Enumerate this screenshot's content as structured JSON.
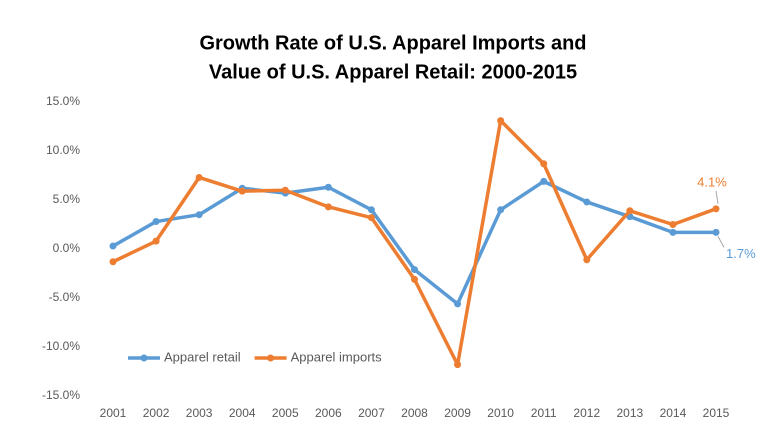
{
  "chart_data": {
    "type": "line",
    "title": [
      "Growth Rate of U.S. Apparel Imports and",
      "Value of U.S. Apparel Retail: 2000-2015"
    ],
    "categories": [
      "2001",
      "2002",
      "2003",
      "2004",
      "2005",
      "2006",
      "2007",
      "2008",
      "2009",
      "2010",
      "2011",
      "2012",
      "2013",
      "2014",
      "2015"
    ],
    "series": [
      {
        "name": "Apparel retail",
        "color": "#5b9bd5",
        "values": [
          0.3,
          2.8,
          3.5,
          6.2,
          5.7,
          6.3,
          4.0,
          -2.1,
          -5.6,
          4.0,
          6.9,
          4.8,
          3.3,
          1.7,
          1.7
        ],
        "value_labels": [
          null,
          null,
          null,
          null,
          null,
          null,
          null,
          null,
          null,
          null,
          null,
          null,
          null,
          null,
          "1.7%"
        ]
      },
      {
        "name": "Apparel imports",
        "color": "#ed7d31",
        "values": [
          -1.3,
          0.8,
          7.3,
          5.9,
          6.0,
          4.3,
          3.2,
          -3.1,
          -11.8,
          13.1,
          8.7,
          -1.1,
          3.9,
          2.5,
          4.1
        ],
        "value_labels": [
          null,
          null,
          null,
          null,
          null,
          null,
          null,
          null,
          null,
          null,
          null,
          null,
          null,
          null,
          "4.1%"
        ]
      }
    ],
    "ylim": [
      -15,
      15
    ],
    "yticks": [
      {
        "value": 15,
        "label": "15.0%"
      },
      {
        "value": 10,
        "label": "10.0%"
      },
      {
        "value": 5,
        "label": "5.0%"
      },
      {
        "value": 0,
        "label": "0.0%"
      },
      {
        "value": -5,
        "label": "-5.0%"
      },
      {
        "value": -10,
        "label": "-10.0%"
      },
      {
        "value": -15,
        "label": "-15.0%"
      }
    ],
    "grid": false,
    "legend": "lower left"
  }
}
